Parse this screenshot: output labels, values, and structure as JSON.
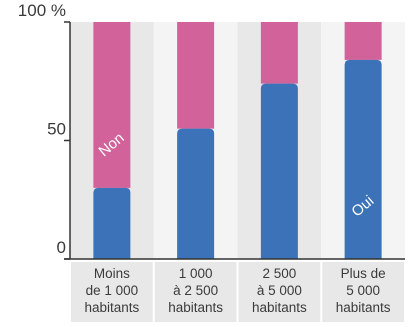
{
  "chart_data": {
    "type": "bar",
    "stacked": true,
    "categories": [
      [
        "Moins",
        "de 1 000",
        "habitants"
      ],
      [
        "1 000",
        "à 2 500",
        "habitants"
      ],
      [
        "2 500",
        "à 5 000",
        "habitants"
      ],
      [
        "Plus de",
        "5 000",
        "habitants"
      ]
    ],
    "series": [
      {
        "name": "Oui",
        "color": "#3b72b8",
        "values": [
          30,
          55,
          74,
          84
        ]
      },
      {
        "name": "Non",
        "color": "#d2629a",
        "values": [
          70,
          45,
          26,
          16
        ]
      }
    ],
    "inline_labels": [
      {
        "text": "Non",
        "series": 1,
        "category": 0,
        "value": 48,
        "rotate": -40
      },
      {
        "text": "Oui",
        "series": 0,
        "category": 3,
        "value": 22,
        "rotate": -40
      }
    ],
    "ylim": [
      0,
      100
    ],
    "yticks": [
      {
        "value": 0,
        "label": "0"
      },
      {
        "value": 50,
        "label": "50"
      },
      {
        "value": 100,
        "label": "100 %"
      }
    ],
    "colors": {
      "band_shaded": "#e8e8e8",
      "band_light": "#f4f4f4",
      "axis": "#333333",
      "text": "#3a3a3a"
    }
  }
}
